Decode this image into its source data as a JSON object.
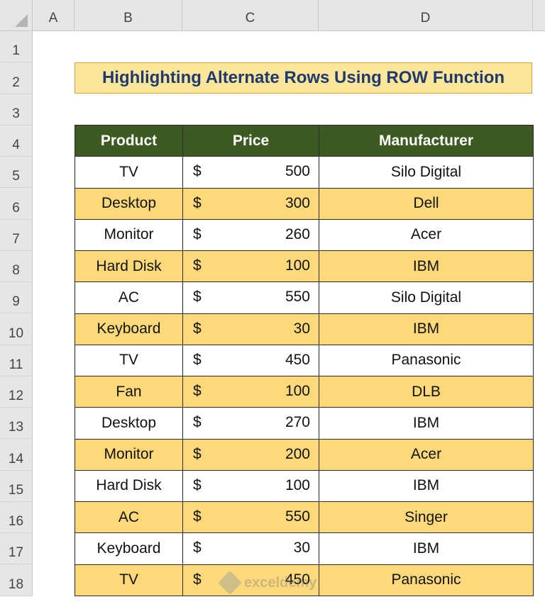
{
  "columns": [
    "A",
    "B",
    "C",
    "D"
  ],
  "rows": [
    "1",
    "2",
    "3",
    "4",
    "5",
    "6",
    "7",
    "8",
    "9",
    "10",
    "11",
    "12",
    "13",
    "14",
    "15",
    "16",
    "17",
    "18"
  ],
  "title": "Highlighting Alternate Rows Using ROW Function",
  "headers": {
    "product": "Product",
    "price": "Price",
    "manufacturer": "Manufacturer"
  },
  "items": [
    {
      "product": "TV",
      "currency": "$",
      "price": "500",
      "manufacturer": "Silo Digital"
    },
    {
      "product": "Desktop",
      "currency": "$",
      "price": "300",
      "manufacturer": "Dell"
    },
    {
      "product": "Monitor",
      "currency": "$",
      "price": "260",
      "manufacturer": "Acer"
    },
    {
      "product": "Hard Disk",
      "currency": "$",
      "price": "100",
      "manufacturer": "IBM"
    },
    {
      "product": "AC",
      "currency": "$",
      "price": "550",
      "manufacturer": "Silo Digital"
    },
    {
      "product": "Keyboard",
      "currency": "$",
      "price": "30",
      "manufacturer": "IBM"
    },
    {
      "product": "TV",
      "currency": "$",
      "price": "450",
      "manufacturer": "Panasonic"
    },
    {
      "product": "Fan",
      "currency": "$",
      "price": "100",
      "manufacturer": "DLB"
    },
    {
      "product": "Desktop",
      "currency": "$",
      "price": "270",
      "manufacturer": "IBM"
    },
    {
      "product": "Monitor",
      "currency": "$",
      "price": "200",
      "manufacturer": "Acer"
    },
    {
      "product": "Hard Disk",
      "currency": "$",
      "price": "100",
      "manufacturer": "IBM"
    },
    {
      "product": "AC",
      "currency": "$",
      "price": "550",
      "manufacturer": "Singer"
    },
    {
      "product": "Keyboard",
      "currency": "$",
      "price": "30",
      "manufacturer": "IBM"
    },
    {
      "product": "TV",
      "currency": "$",
      "price": "450",
      "manufacturer": "Panasonic"
    }
  ],
  "watermark": "exceldemy",
  "colors": {
    "header_bg": "#3c5a22",
    "highlight": "#fdd97a",
    "title_bg": "#fde59a",
    "title_text": "#1f3a6e"
  }
}
